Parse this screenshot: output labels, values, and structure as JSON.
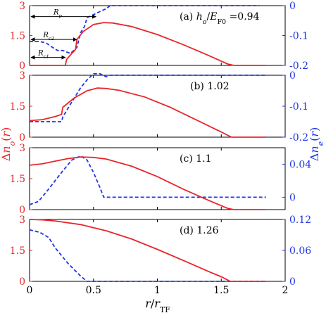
{
  "chart_data": {
    "type": "line",
    "xlabel": "r/r_TF",
    "ylabel_left": "Δn_o(r)",
    "ylabel_right": "Δn_e(r)",
    "x_range": [
      0,
      2
    ],
    "x_ticks": [
      "0",
      "0.5",
      "1",
      "1.5",
      "2"
    ],
    "colors": {
      "left_series": "#e8262b",
      "right_series": "#1f36e0"
    },
    "panels": [
      {
        "id": "a",
        "label": "(a)",
        "value_text": "h_o/E_F0 = 0.94",
        "left_ylim": [
          0,
          3
        ],
        "left_ticks": [
          "0",
          "1.5",
          "3"
        ],
        "right_ylim": [
          -0.2,
          0
        ],
        "right_ticks": [
          "0",
          "-0.1",
          "-0.2"
        ],
        "annotations": [
          "R_p",
          "R_c2",
          "R_c1"
        ],
        "left_series": [
          [
            0,
            0
          ],
          [
            0.28,
            0
          ],
          [
            0.29,
            0.3
          ],
          [
            0.33,
            0.6
          ],
          [
            0.36,
            0.8
          ],
          [
            0.37,
            1.3
          ],
          [
            0.42,
            1.7
          ],
          [
            0.5,
            2.05
          ],
          [
            0.58,
            2.15
          ],
          [
            0.65,
            2.13
          ],
          [
            0.8,
            1.95
          ],
          [
            1.0,
            1.55
          ],
          [
            1.2,
            1.05
          ],
          [
            1.4,
            0.5
          ],
          [
            1.55,
            0.07
          ],
          [
            1.6,
            0
          ],
          [
            1.85,
            0
          ]
        ],
        "right_series": [
          [
            0,
            -0.12
          ],
          [
            0.08,
            -0.12
          ],
          [
            0.13,
            -0.125
          ],
          [
            0.18,
            -0.14
          ],
          [
            0.22,
            -0.15
          ],
          [
            0.26,
            -0.15
          ],
          [
            0.32,
            -0.16
          ],
          [
            0.37,
            -0.14
          ],
          [
            0.4,
            -0.09
          ],
          [
            0.43,
            -0.07
          ],
          [
            0.45,
            -0.04
          ],
          [
            0.5,
            -0.03
          ],
          [
            0.55,
            -0.02
          ],
          [
            0.6,
            -0.01
          ],
          [
            0.63,
            0
          ],
          [
            1.8,
            0
          ]
        ]
      },
      {
        "id": "b",
        "label": "(b)",
        "value_text": "1.02",
        "left_ylim": [
          0,
          3
        ],
        "left_ticks": [
          "0",
          "1.5",
          "3"
        ],
        "right_ylim": [
          -0.2,
          0
        ],
        "right_ticks": [
          "0",
          "-0.1",
          "-0.2"
        ],
        "left_series": [
          [
            0,
            0.8
          ],
          [
            0.1,
            0.85
          ],
          [
            0.2,
            1.0
          ],
          [
            0.25,
            1.1
          ],
          [
            0.26,
            1.45
          ],
          [
            0.35,
            1.9
          ],
          [
            0.45,
            2.25
          ],
          [
            0.53,
            2.38
          ],
          [
            0.6,
            2.36
          ],
          [
            0.7,
            2.27
          ],
          [
            0.9,
            1.95
          ],
          [
            1.1,
            1.45
          ],
          [
            1.3,
            0.85
          ],
          [
            1.5,
            0.25
          ],
          [
            1.58,
            0
          ],
          [
            1.85,
            0
          ]
        ],
        "right_series": [
          [
            0,
            -0.15
          ],
          [
            0.2,
            -0.15
          ],
          [
            0.25,
            -0.15
          ],
          [
            0.26,
            -0.135
          ],
          [
            0.31,
            -0.1
          ],
          [
            0.4,
            -0.04
          ],
          [
            0.45,
            -0.015
          ],
          [
            0.5,
            0.005
          ],
          [
            0.55,
            0.005
          ],
          [
            0.6,
            -0.005
          ],
          [
            0.63,
            0
          ],
          [
            1.85,
            0
          ]
        ]
      },
      {
        "id": "c",
        "label": "(c)",
        "value_text": "1.1",
        "left_ylim": [
          0,
          3
        ],
        "left_ticks": [
          "0",
          "1.5",
          "3"
        ],
        "right_ylim": [
          -0.015,
          0.06
        ],
        "right_ticks": [
          "0.04",
          "0"
        ],
        "left_series": [
          [
            0,
            2.15
          ],
          [
            0.1,
            2.22
          ],
          [
            0.2,
            2.35
          ],
          [
            0.3,
            2.47
          ],
          [
            0.4,
            2.55
          ],
          [
            0.5,
            2.53
          ],
          [
            0.6,
            2.45
          ],
          [
            0.8,
            2.1
          ],
          [
            1.0,
            1.6
          ],
          [
            1.2,
            1.0
          ],
          [
            1.4,
            0.45
          ],
          [
            1.55,
            0.06
          ],
          [
            1.6,
            0
          ],
          [
            1.85,
            0
          ]
        ],
        "right_series": [
          [
            0,
            -0.009
          ],
          [
            0.07,
            -0.005
          ],
          [
            0.15,
            0.01
          ],
          [
            0.25,
            0.03
          ],
          [
            0.33,
            0.045
          ],
          [
            0.4,
            0.05
          ],
          [
            0.45,
            0.045
          ],
          [
            0.5,
            0.03
          ],
          [
            0.55,
            0.012
          ],
          [
            0.58,
            0
          ],
          [
            1.85,
            0
          ]
        ]
      },
      {
        "id": "d",
        "label": "(d)",
        "value_text": "1.26",
        "left_ylim": [
          0,
          3
        ],
        "left_ticks": [
          "0",
          "1.5",
          "3"
        ],
        "right_ylim": [
          0,
          0.12
        ],
        "right_ticks": [
          "0.12",
          "0.06",
          "0"
        ],
        "left_series": [
          [
            0,
            3.0
          ],
          [
            0.1,
            2.98
          ],
          [
            0.2,
            2.93
          ],
          [
            0.4,
            2.75
          ],
          [
            0.6,
            2.45
          ],
          [
            0.8,
            2.05
          ],
          [
            1.0,
            1.55
          ],
          [
            1.2,
            1.02
          ],
          [
            1.4,
            0.48
          ],
          [
            1.5,
            0.22
          ],
          [
            1.57,
            0
          ],
          [
            1.85,
            0
          ]
        ],
        "right_series": [
          [
            0,
            0.1
          ],
          [
            0.08,
            0.095
          ],
          [
            0.15,
            0.085
          ],
          [
            0.2,
            0.065
          ],
          [
            0.3,
            0.035
          ],
          [
            0.4,
            0.01
          ],
          [
            0.45,
            0
          ],
          [
            1.85,
            0
          ]
        ]
      }
    ]
  }
}
